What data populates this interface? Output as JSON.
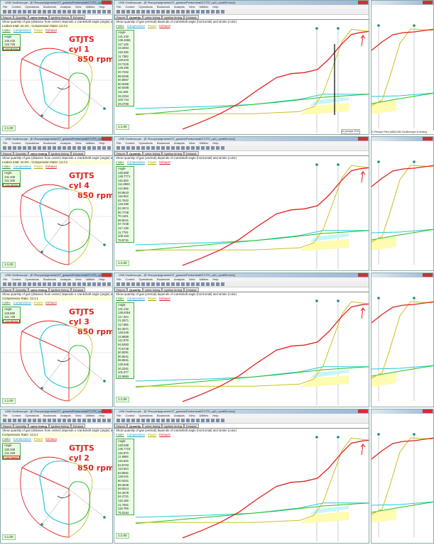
{
  "app_title": "USB Oscilloscope - [E:\\Pscope\\pigments\\GT_gasses\\Pentominal\\GTJTS_cyl1_rpm850.mxd]",
  "menu": [
    "File",
    "Control",
    "Operations",
    "Bookmark",
    "Analysis",
    "View",
    "Utilities",
    "Help"
  ],
  "tabs": [
    "Report",
    "Quantity",
    "valve timing",
    "Ignition timing",
    "Exhaust"
  ],
  "left_description": "Show quantity of gas (distance from center) depends o crankshaft angle (angle) and stroke (color)",
  "mid_description": "Show quantity of gas (vertical) depends of crankshaft angle (horizontal) and stroke (color)",
  "legend": [
    {
      "label": "Intake",
      "color": "#2a8a2a"
    },
    {
      "label": "Compression",
      "color": "#1aa0c0"
    },
    {
      "label": "Power",
      "color": "#b0a000"
    },
    {
      "label": "Exhaust",
      "color": "#d02020"
    }
  ],
  "colors": {
    "intake": "#22c022",
    "compression": "#22c8d8",
    "power": "#c8c020",
    "exhaust": "#e02020",
    "marker": "#1a8a8a"
  },
  "zoom_label": "1:1.00",
  "zoom_label2": "1:1.00",
  "copyright": "(c) pscope 2011",
  "status_right": "C:\\Pscope Files (x86)\\USB Oscilloscope of Analog",
  "rows": [
    {
      "engine": "GTJTS",
      "cyl": "cyl 1",
      "rpm": "850 rpm",
      "cr": "Leakes total: 22.4% ; Compression Ratio: 13.3:1",
      "left_values": [
        "Angle",
        "135.432",
        "143.726"
      ],
      "left_red": [
        "117.911%",
        "136.126%",
        "138.395%",
        "116.245%",
        "120.047%"
      ],
      "mid_values": [
        "Angle",
        "131.232",
        "136.4655",
        "117.135",
        "43.2664",
        "119.335",
        "11.7382",
        "128.843",
        "23.7225",
        "128.390",
        "20.7262",
        "88.6265",
        "60.8967",
        "80.0056",
        "60.9288",
        "111.826",
        "26.2254",
        "100.744",
        "29.2790"
      ]
    },
    {
      "engine": "GTJTS",
      "cyl": "cyl 4",
      "rpm": "850 rpm",
      "cr": "Leakes total: 22.5% ; Compression Ratio: 13.4:1",
      "left_values": [
        "Angle",
        "131.408",
        "141.300"
      ],
      "left_red": [
        "118.262%",
        "136.565%",
        "137.417%",
        "115.729%",
        "119.350%"
      ],
      "mid_values": [
        "Angle",
        "130.868",
        "136.7771",
        "115.000",
        "111.8060",
        "113.866",
        "83.8643",
        "116.842",
        "62.7822",
        "126.390",
        "82.2874",
        "80.7708",
        "70.1191",
        "88.8041",
        "67.7238",
        "117.138",
        "11.7761",
        "108.163",
        "78.8731"
      ]
    },
    {
      "engine": "GTJTS",
      "cyl": "cyl 3",
      "rpm": "850 rpm",
      "cr": "Compression Ratio: 13.1:1",
      "left_values": [
        "Angle",
        "129.880",
        "141.728"
      ],
      "left_red": [
        "116.902%",
        "135.438%",
        "135.088%",
        "115.606%"
      ],
      "mid_values": [
        "Angle",
        "131.232",
        "136.8354",
        "117.324",
        "21.0971",
        "117.865",
        "82.2671",
        "128.536",
        "24.8858",
        "112.878",
        "94.6393",
        "70.5748",
        "60.8091",
        "80.8641",
        "88.8941",
        "130.846",
        "20.2261",
        "101.677",
        "22.6993"
      ]
    },
    {
      "engine": "GTJTS",
      "cyl": "cyl 2",
      "rpm": "850 rpm",
      "cr": "Compression Ratio: 13.2:1",
      "left_values": [
        "Angle",
        "130.338",
        "141.328"
      ],
      "left_red": [
        "116.206%",
        "136.541%",
        "137.839%",
        "117.734%",
        "119.045%"
      ],
      "mid_values": [
        "Angle",
        "130.848",
        "136.7723",
        "116.670",
        "11.9866",
        "118.625",
        "63.8763",
        "113.944",
        "83.8681",
        "128.041",
        "80.0201",
        "88.3838",
        "66.5514",
        "84.4678",
        "84.2721",
        "115.189",
        "21.7661",
        "115.788",
        "75.5164"
      ]
    }
  ]
}
